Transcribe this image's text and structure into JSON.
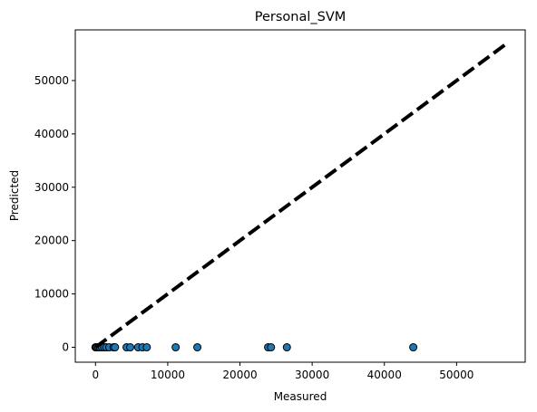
{
  "chart_data": {
    "type": "scatter",
    "title": "Personal_SVM",
    "xlabel": "Measured",
    "ylabel": "Predicted",
    "xlim": [
      -2800,
      59500
    ],
    "ylim": [
      -2800,
      59500
    ],
    "xticks": [
      0,
      10000,
      20000,
      30000,
      40000,
      50000
    ],
    "yticks": [
      0,
      10000,
      20000,
      30000,
      40000,
      50000
    ],
    "tick_labels_x": [
      "0",
      "10000",
      "20000",
      "30000",
      "40000",
      "50000"
    ],
    "tick_labels_y": [
      "0",
      "10000",
      "20000",
      "30000",
      "40000",
      "50000"
    ],
    "grid": false,
    "legend": "none",
    "marker_color": "#1f77b4",
    "marker_edge_color": "#000000",
    "reference_line": {
      "from": [
        0,
        0
      ],
      "to": [
        56700,
        56700
      ],
      "style": "dashed",
      "color": "#000000"
    },
    "points": [
      {
        "x": 0,
        "y": 0
      },
      {
        "x": 100,
        "y": 0
      },
      {
        "x": 200,
        "y": 0
      },
      {
        "x": 400,
        "y": 0
      },
      {
        "x": 600,
        "y": 0
      },
      {
        "x": 900,
        "y": 0
      },
      {
        "x": 1200,
        "y": 0
      },
      {
        "x": 1500,
        "y": 0
      },
      {
        "x": 1900,
        "y": 0
      },
      {
        "x": 2500,
        "y": 0
      },
      {
        "x": 2700,
        "y": 0
      },
      {
        "x": 4300,
        "y": 0
      },
      {
        "x": 4800,
        "y": 0
      },
      {
        "x": 5900,
        "y": 0
      },
      {
        "x": 6500,
        "y": 0
      },
      {
        "x": 7100,
        "y": 0
      },
      {
        "x": 11100,
        "y": 0
      },
      {
        "x": 14100,
        "y": 0
      },
      {
        "x": 23900,
        "y": 0
      },
      {
        "x": 24300,
        "y": 0
      },
      {
        "x": 26500,
        "y": 0
      },
      {
        "x": 44000,
        "y": 0
      }
    ]
  }
}
